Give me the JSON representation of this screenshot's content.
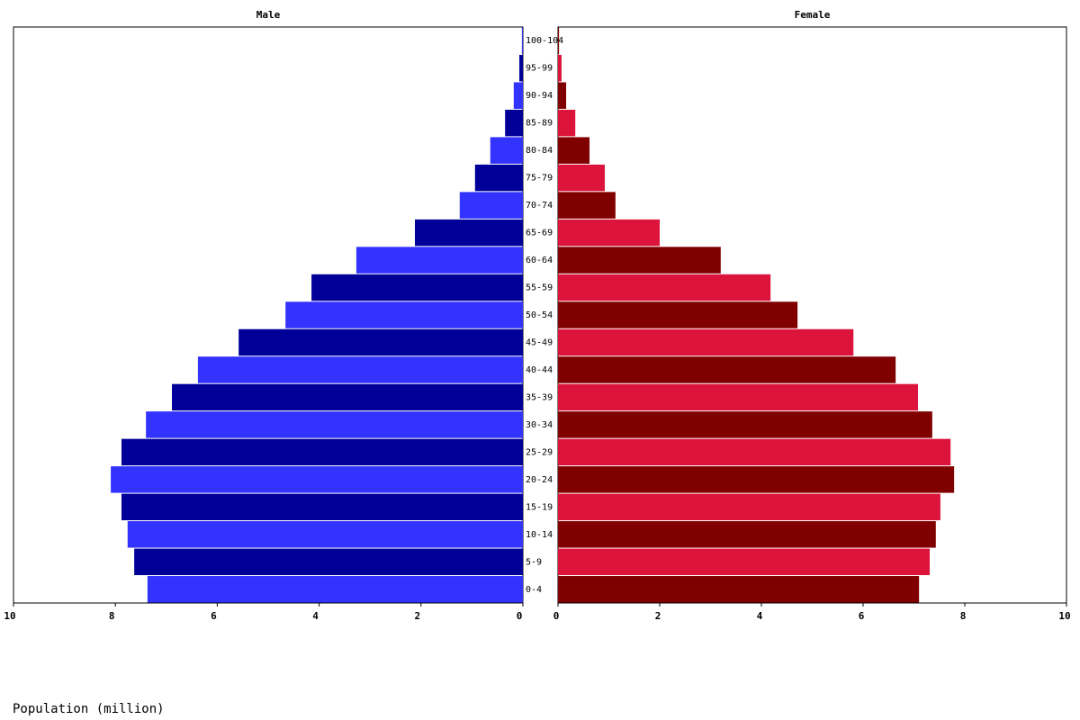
{
  "chart_data": {
    "type": "pyramid",
    "categories": [
      "0-4",
      "5-9",
      "10-14",
      "15-19",
      "20-24",
      "25-29",
      "30-34",
      "35-39",
      "40-44",
      "45-49",
      "50-54",
      "55-59",
      "60-64",
      "65-69",
      "70-74",
      "75-79",
      "80-84",
      "85-89",
      "90-94",
      "95-99",
      "100-104"
    ],
    "series": [
      {
        "name": "Male",
        "colors": [
          "#3333ff",
          "#000099"
        ],
        "values": [
          7.37,
          7.63,
          7.76,
          7.88,
          8.09,
          7.88,
          7.4,
          6.89,
          6.38,
          5.58,
          4.66,
          4.15,
          3.27,
          2.12,
          1.24,
          0.94,
          0.64,
          0.35,
          0.18,
          0.07,
          0.02
        ]
      },
      {
        "name": "Female",
        "colors": [
          "#800000",
          "#dc143c"
        ],
        "values": [
          7.1,
          7.31,
          7.43,
          7.52,
          7.79,
          7.72,
          7.36,
          7.08,
          6.64,
          5.81,
          4.71,
          4.18,
          3.2,
          2.0,
          1.13,
          0.92,
          0.62,
          0.34,
          0.16,
          0.07,
          0.02
        ]
      }
    ],
    "xlim": [
      0,
      10
    ],
    "xticks": [
      0,
      2,
      4,
      6,
      8,
      10
    ],
    "x_label": "Population (million)"
  }
}
